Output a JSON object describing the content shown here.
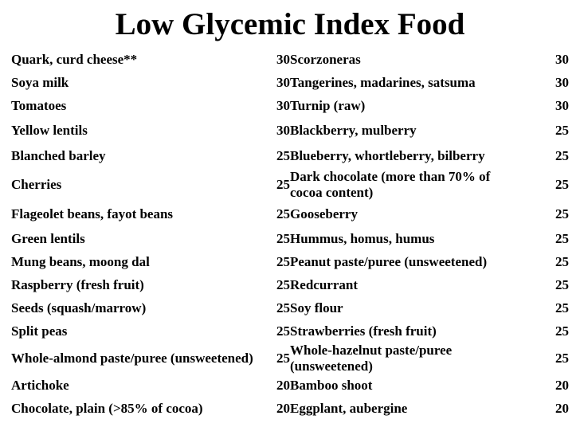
{
  "title": "Low Glycemic Index Food",
  "table": {
    "rows": [
      {
        "left_food": "Quark, curd cheese**",
        "left_value": "30",
        "right_food": "Scorzoneras",
        "right_value": "30"
      },
      {
        "left_food": "Soya milk",
        "left_value": "30",
        "right_food": "Tangerines, madarines, satsuma",
        "right_value": "30"
      },
      {
        "left_food": "Tomatoes",
        "left_value": "30",
        "right_food": "Turnip (raw)",
        "right_value": "30"
      },
      {
        "left_food": "Yellow lentils",
        "left_value": "30",
        "right_food": "Blackberry, mulberry",
        "right_value": "25"
      },
      {
        "left_food": "Blanched barley",
        "left_value": "25",
        "right_food": "Blueberry, whortleberry, bilberry",
        "right_value": "25"
      },
      {
        "left_food": "Cherries",
        "left_value": "25",
        "right_food": "Dark chocolate (more than 70% of cocoa content)",
        "right_value": "25"
      },
      {
        "left_food": "Flageolet beans, fayot beans",
        "left_value": "25",
        "right_food": "Gooseberry",
        "right_value": "25"
      },
      {
        "left_food": "Green lentils",
        "left_value": "25",
        "right_food": "Hummus, homus, humus",
        "right_value": "25"
      },
      {
        "left_food": "Mung beans, moong dal",
        "left_value": "25",
        "right_food": "Peanut paste/puree (unsweetened)",
        "right_value": "25"
      },
      {
        "left_food": "Raspberry (fresh fruit)",
        "left_value": "25",
        "right_food": "Redcurrant",
        "right_value": "25"
      },
      {
        "left_food": "Seeds (squash/marrow)",
        "left_value": "25",
        "right_food": "Soy flour",
        "right_value": "25"
      },
      {
        "left_food": "Split peas",
        "left_value": "25",
        "right_food": "Strawberries (fresh fruit)",
        "right_value": "25"
      },
      {
        "left_food": "Whole-almond paste/puree (unsweetened)",
        "left_value": "25",
        "right_food": "Whole-hazelnut paste/puree (unsweetened)",
        "right_value": "25"
      },
      {
        "left_food": "Artichoke",
        "left_value": "20",
        "right_food": "Bamboo shoot",
        "right_value": "20"
      },
      {
        "left_food": "Chocolate, plain (>85% of cocoa)",
        "left_value": "20",
        "right_food": "Eggplant, aubergine",
        "right_value": "20"
      }
    ]
  },
  "colors": {
    "background": "#ffffff",
    "text": "#000000"
  }
}
